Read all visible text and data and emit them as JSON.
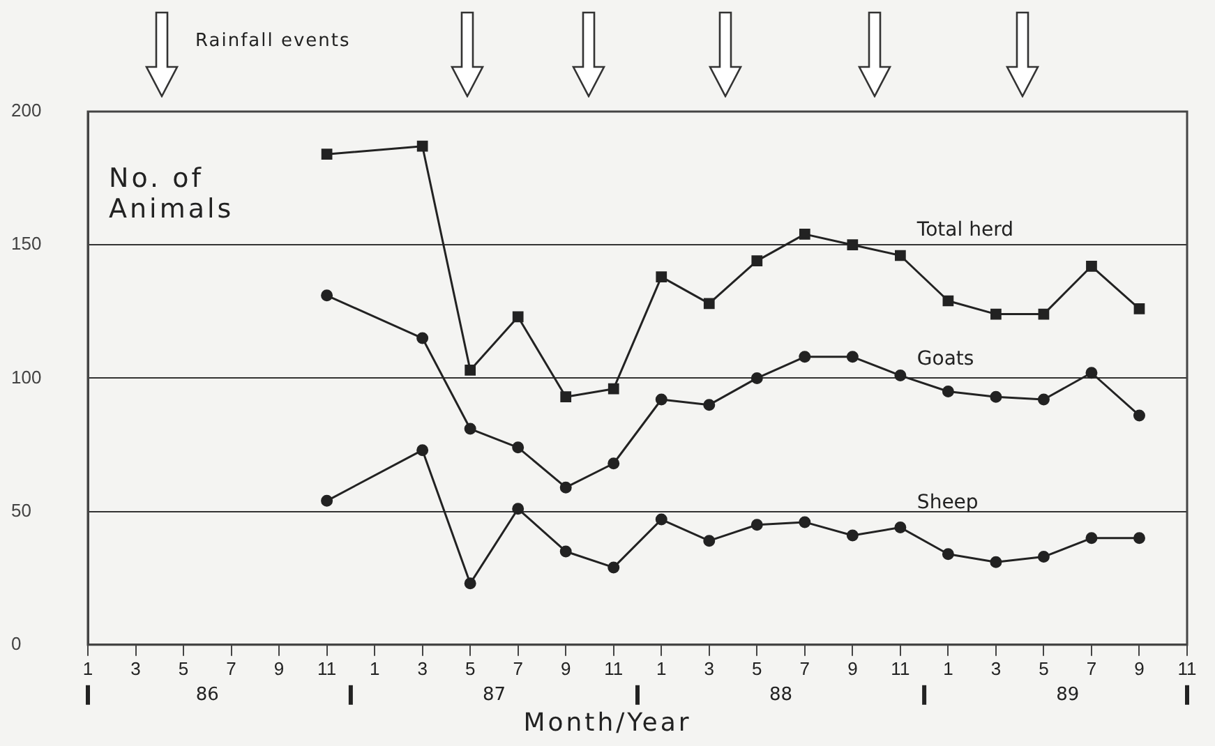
{
  "chart_data": {
    "type": "line",
    "ylabel": "No. of Animals",
    "xlabel": "Month/Year",
    "annotations": [
      "Rainfall events",
      "86",
      "87",
      "88",
      "89"
    ],
    "categories": [
      "1",
      "3",
      "5",
      "7",
      "9",
      "11",
      "1",
      "3",
      "5",
      "7",
      "9",
      "11",
      "1",
      "3",
      "5",
      "7",
      "9",
      "11",
      "1",
      "3",
      "5",
      "7",
      "9",
      "11"
    ],
    "ylim": [
      0,
      200
    ],
    "yticks": [
      0,
      50,
      100,
      150,
      200
    ],
    "grid": "y",
    "line_style": "solid",
    "series": [
      {
        "name": "Total herd",
        "color": "#222222",
        "marker": "square",
        "values": [
          null,
          null,
          null,
          null,
          null,
          184,
          null,
          187,
          103,
          123,
          93,
          96,
          138,
          128,
          144,
          154,
          150,
          146,
          129,
          124,
          124,
          142,
          126,
          null
        ]
      },
      {
        "name": "Goats",
        "color": "#222222",
        "marker": "circle",
        "values": [
          null,
          null,
          null,
          null,
          null,
          131,
          null,
          115,
          81,
          74,
          59,
          68,
          92,
          90,
          100,
          108,
          108,
          101,
          95,
          93,
          92,
          102,
          86,
          null
        ]
      },
      {
        "name": "Sheep",
        "color": "#222222",
        "marker": "circle",
        "values": [
          null,
          null,
          null,
          null,
          null,
          54,
          null,
          73,
          23,
          51,
          35,
          29,
          47,
          39,
          45,
          46,
          41,
          44,
          34,
          31,
          33,
          40,
          40,
          null
        ]
      }
    ]
  }
}
